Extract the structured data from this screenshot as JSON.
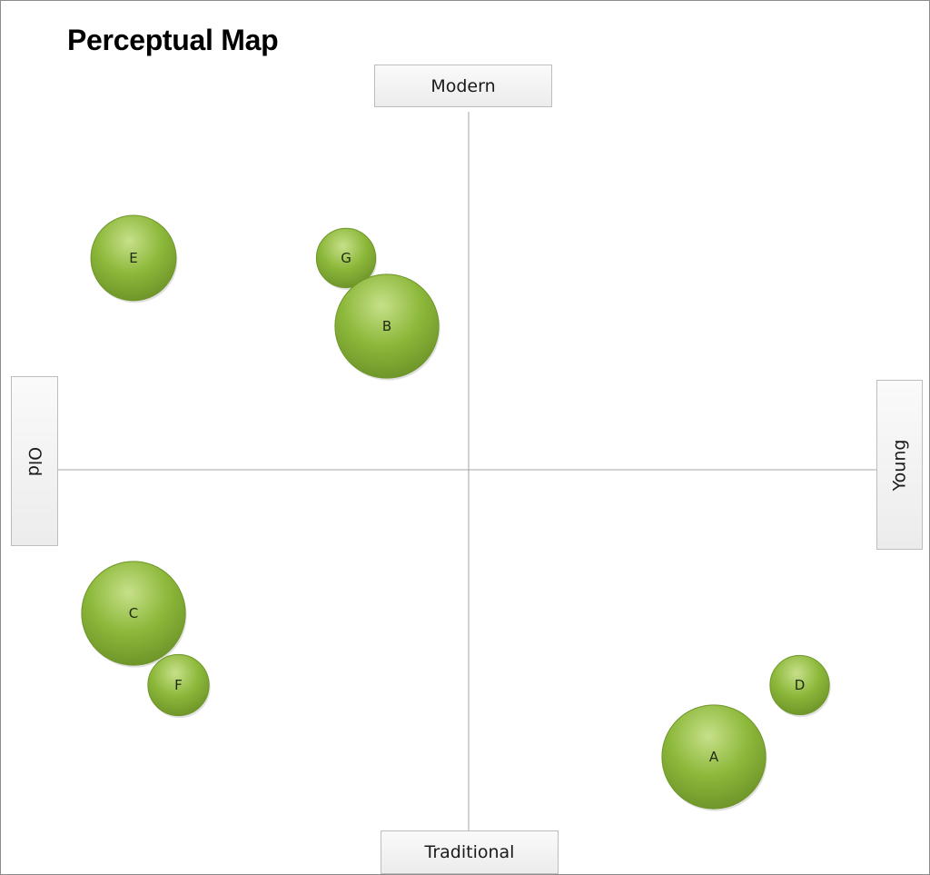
{
  "chart_data": {
    "type": "scatter",
    "title": "Perceptual Map",
    "axes": {
      "top_label": "Modern",
      "bottom_label": "Traditional",
      "left_label": "Old",
      "right_label": "Young"
    },
    "xlim": [
      -10,
      10
    ],
    "ylim": [
      -10,
      10
    ],
    "grid": false,
    "legend": "none",
    "bubble_color": "#8cb83a",
    "bubble_highlight": "#c7e08a",
    "bubble_edge": "#6f962a",
    "axis_line_color": "#a6a6a6",
    "points": [
      {
        "label": "E",
        "x": -8.2,
        "y": 5.9,
        "size": 4.6
      },
      {
        "label": "G",
        "x": -3.0,
        "y": 5.9,
        "size": 3.2
      },
      {
        "label": "B",
        "x": -2.0,
        "y": 4.0,
        "size": 5.6
      },
      {
        "label": "C",
        "x": -8.2,
        "y": -4.0,
        "size": 5.6
      },
      {
        "label": "F",
        "x": -7.1,
        "y": -6.0,
        "size": 3.3
      },
      {
        "label": "D",
        "x": 8.1,
        "y": -6.0,
        "size": 3.2
      },
      {
        "label": "A",
        "x": 6.0,
        "y": -8.0,
        "size": 5.6
      }
    ]
  }
}
